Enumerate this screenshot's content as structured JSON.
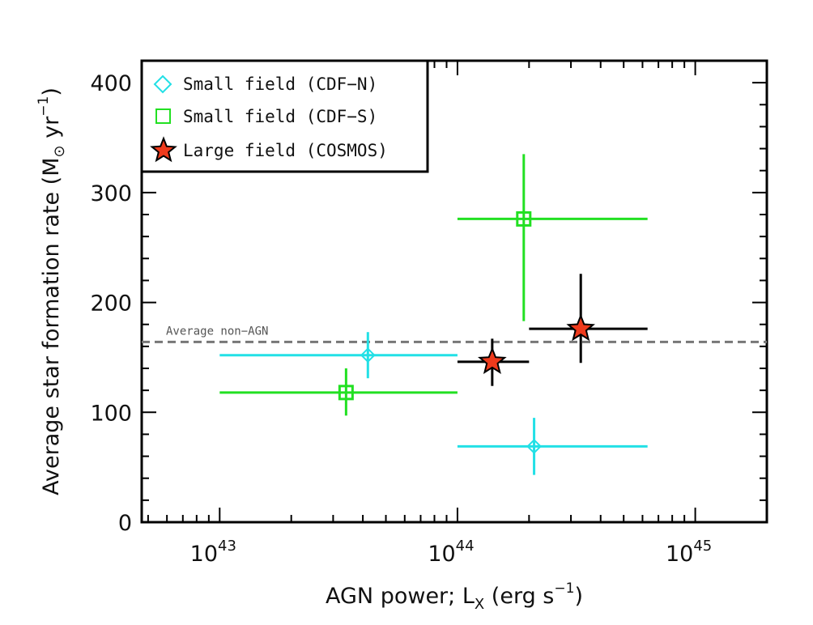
{
  "chart_data": {
    "type": "scatter",
    "x_scale": "log",
    "xlim": [
      4.7e+42,
      2e+45
    ],
    "ylim": [
      0,
      420
    ],
    "x_ticks": [
      {
        "value": 1e+43,
        "base": "10",
        "exp": "43"
      },
      {
        "value": 1e+44,
        "base": "10",
        "exp": "44"
      },
      {
        "value": 1e+45,
        "base": "10",
        "exp": "45"
      }
    ],
    "y_ticks": [
      {
        "value": 0,
        "label": "0"
      },
      {
        "value": 100,
        "label": "100"
      },
      {
        "value": 200,
        "label": "200"
      },
      {
        "value": 300,
        "label": "300"
      },
      {
        "value": 400,
        "label": "400"
      }
    ],
    "xlabel": {
      "prefix": "AGN power; L",
      "sub": "X",
      "mid": " (erg s",
      "sup": "−1",
      "suffix": ")"
    },
    "ylabel": {
      "prefix": "Average star formation rate (M",
      "sub": "⊙",
      "mid": " yr",
      "sup": "−1",
      "suffix": ")"
    },
    "reference_line": {
      "value": 164,
      "label": "Average non−AGN",
      "color": "#777777"
    },
    "legend": {
      "position": "top-left",
      "entries": [
        {
          "label": "Small field (CDF−N)",
          "marker": "diamond",
          "color": "#22e0e6"
        },
        {
          "label": "Small field (CDF−S)",
          "marker": "square",
          "color": "#22e022"
        },
        {
          "label": "Large field (COSMOS)",
          "marker": "star",
          "color": "#ee3a1c"
        }
      ]
    },
    "series": [
      {
        "name": "Small field (CDF−N)",
        "marker": "diamond",
        "color": "#22e0e6",
        "points": [
          {
            "x": 4.2e+43,
            "y": 152,
            "xlo": 1e+43,
            "xhi": 1e+44,
            "ylo": 131,
            "yhi": 173
          },
          {
            "x": 2.1e+44,
            "y": 69,
            "xlo": 1e+44,
            "xhi": 6.3e+44,
            "ylo": 43,
            "yhi": 95
          }
        ]
      },
      {
        "name": "Small field (CDF−S)",
        "marker": "square",
        "color": "#22e022",
        "points": [
          {
            "x": 3.4e+43,
            "y": 118,
            "xlo": 1e+43,
            "xhi": 1e+44,
            "ylo": 97,
            "yhi": 140
          },
          {
            "x": 1.9e+44,
            "y": 276,
            "xlo": 1e+44,
            "xhi": 6.3e+44,
            "ylo": 183,
            "yhi": 335
          }
        ]
      },
      {
        "name": "Large field (COSMOS)",
        "marker": "star",
        "color": "#ee3a1c",
        "points": [
          {
            "x": 1.4e+44,
            "y": 146,
            "xlo": 1e+44,
            "xhi": 2e+44,
            "ylo": 124,
            "yhi": 167
          },
          {
            "x": 3.3e+44,
            "y": 176,
            "xlo": 2e+44,
            "xhi": 6.3e+44,
            "ylo": 145,
            "yhi": 226
          }
        ]
      }
    ]
  }
}
